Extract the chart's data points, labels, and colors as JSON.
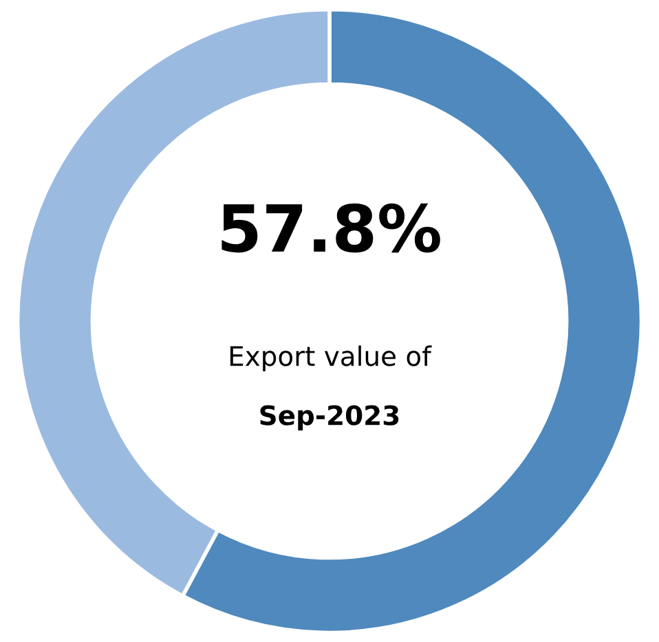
{
  "chart_data": {
    "type": "donut",
    "categories": [
      null,
      null
    ],
    "values": [
      57.8,
      42.2
    ],
    "colors": [
      "#4f89bd",
      "#9bbae0"
    ],
    "annotations": [
      "57.8%",
      "Export value of",
      "Sep-2023"
    ]
  }
}
